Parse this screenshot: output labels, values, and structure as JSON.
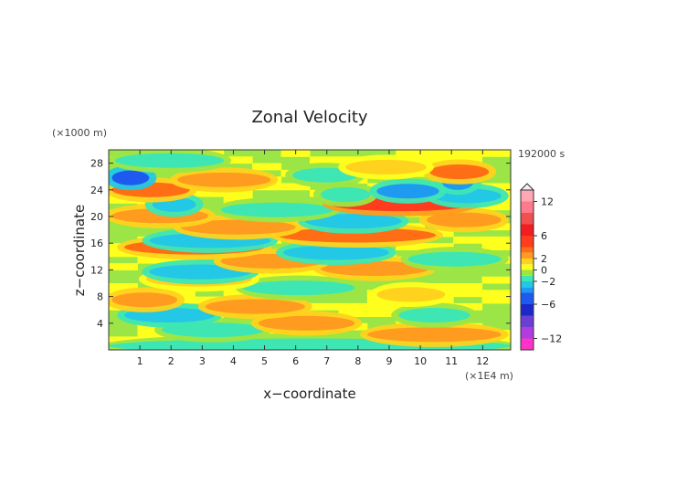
{
  "chart_data": {
    "type": "heatmap",
    "title": "Zonal Velocity",
    "xlabel": "x−coordinate",
    "ylabel": "z−coordinate",
    "x_unit": "(×1E4 m)",
    "y_unit": "(×1000 m)",
    "time_label": "192000 s",
    "xlim": [
      0,
      12.9
    ],
    "ylim": [
      0,
      30
    ],
    "x_ticks": [
      "1",
      "2",
      "3",
      "4",
      "5",
      "6",
      "7",
      "8",
      "9",
      "10",
      "11",
      "12"
    ],
    "x_tick_values": [
      1,
      2,
      3,
      4,
      5,
      6,
      7,
      8,
      9,
      10,
      11,
      12
    ],
    "y_ticks": [
      "4",
      "8",
      "12",
      "16",
      "20",
      "24",
      "28"
    ],
    "y_tick_values": [
      4,
      8,
      12,
      16,
      20,
      24,
      28
    ],
    "colorbar": {
      "labels": [
        "12",
        "6",
        "2",
        "0",
        "−2",
        "−6",
        "−12"
      ],
      "label_values": [
        12,
        6,
        2,
        0,
        -2,
        -6,
        -12
      ],
      "min": -14,
      "max": 14,
      "levels": [
        {
          "lo": -14,
          "hi": -12,
          "color": "#ff33c8"
        },
        {
          "lo": -12,
          "hi": -10,
          "color": "#b13ce0"
        },
        {
          "lo": -10,
          "hi": -8,
          "color": "#6b3fd6"
        },
        {
          "lo": -8,
          "hi": -6,
          "color": "#1c28c8"
        },
        {
          "lo": -6,
          "hi": -4,
          "color": "#1e5af0"
        },
        {
          "lo": -4,
          "hi": -3,
          "color": "#1e9bf0"
        },
        {
          "lo": -3,
          "hi": -2,
          "color": "#22c8e6"
        },
        {
          "lo": -2,
          "hi": -1,
          "color": "#3ee6b4"
        },
        {
          "lo": -1,
          "hi": 0,
          "color": "#9be646"
        },
        {
          "lo": 0,
          "hi": 1,
          "color": "#ffff1e"
        },
        {
          "lo": 1,
          "hi": 2,
          "color": "#ffd21e"
        },
        {
          "lo": 2,
          "hi": 3,
          "color": "#ff9b1e"
        },
        {
          "lo": 3,
          "hi": 4,
          "color": "#ff6e14"
        },
        {
          "lo": 4,
          "hi": 6,
          "color": "#ff3c1e"
        },
        {
          "lo": 6,
          "hi": 8,
          "color": "#f01e1e"
        },
        {
          "lo": 8,
          "hi": 10,
          "color": "#f05050"
        },
        {
          "lo": 10,
          "hi": 12,
          "color": "#ff7a8c"
        },
        {
          "lo": 12,
          "hi": 14,
          "color": "#ffa8b4"
        }
      ]
    },
    "bands": [
      {
        "z": 0.6,
        "x0": 0.0,
        "x1": 12.9,
        "v": -1.4
      },
      {
        "z": 2.3,
        "x0": 8.3,
        "x1": 12.6,
        "v": 2.8
      },
      {
        "z": 3.0,
        "x0": 1.7,
        "x1": 5.0,
        "v": -1.7
      },
      {
        "z": 4.0,
        "x0": 4.8,
        "x1": 7.9,
        "v": 2.4
      },
      {
        "z": 5.2,
        "x0": 0.5,
        "x1": 3.4,
        "v": -2.4
      },
      {
        "z": 5.2,
        "x0": 9.3,
        "x1": 11.6,
        "v": -1.8
      },
      {
        "z": 6.5,
        "x0": 3.1,
        "x1": 6.3,
        "v": 2.1
      },
      {
        "z": 7.5,
        "x0": 0.1,
        "x1": 2.2,
        "v": 2.6
      },
      {
        "z": 8.3,
        "x0": 8.6,
        "x1": 10.8,
        "v": 1.8
      },
      {
        "z": 9.3,
        "x0": 4.3,
        "x1": 7.9,
        "v": -1.6
      },
      {
        "z": 10.6,
        "x0": 1.2,
        "x1": 4.6,
        "v": 1.8
      },
      {
        "z": 11.7,
        "x0": 1.3,
        "x1": 4.6,
        "v": -2.4
      },
      {
        "z": 12.2,
        "x0": 6.8,
        "x1": 10.3,
        "v": 2.6
      },
      {
        "z": 13.3,
        "x0": 3.6,
        "x1": 6.9,
        "v": 2.2
      },
      {
        "z": 13.6,
        "x0": 9.6,
        "x1": 12.6,
        "v": -1.5
      },
      {
        "z": 14.6,
        "x0": 5.6,
        "x1": 9.0,
        "v": -2.3
      },
      {
        "z": 15.4,
        "x0": 0.5,
        "x1": 5.0,
        "v": 3.3
      },
      {
        "z": 16.4,
        "x0": 1.3,
        "x1": 5.2,
        "v": -2.4
      },
      {
        "z": 17.2,
        "x0": 5.4,
        "x1": 10.5,
        "v": 3.0
      },
      {
        "z": 18.4,
        "x0": 2.3,
        "x1": 6.0,
        "v": 2.2
      },
      {
        "z": 19.3,
        "x0": 6.3,
        "x1": 9.4,
        "v": -2.1
      },
      {
        "z": 19.5,
        "x0": 10.2,
        "x1": 12.6,
        "v": 2.4
      },
      {
        "z": 20.1,
        "x0": 0.1,
        "x1": 3.2,
        "v": 2.9
      },
      {
        "z": 21.0,
        "x0": 3.6,
        "x1": 7.2,
        "v": -1.6
      },
      {
        "z": 21.9,
        "x0": 7.1,
        "x1": 11.7,
        "v": 4.0
      },
      {
        "z": 21.8,
        "x0": 1.4,
        "x1": 2.8,
        "v": -2.7
      },
      {
        "z": 23.1,
        "x0": 10.4,
        "x1": 12.6,
        "v": -2.2
      },
      {
        "z": 23.3,
        "x0": 6.8,
        "x1": 8.4,
        "v": -1.6
      },
      {
        "z": 23.8,
        "x0": 8.6,
        "x1": 10.6,
        "v": -3.4
      },
      {
        "z": 24.0,
        "x0": 0.1,
        "x1": 2.6,
        "v": 3.6
      },
      {
        "z": 25.1,
        "x0": 10.7,
        "x1": 11.7,
        "v": -3.8
      },
      {
        "z": 25.5,
        "x0": 2.2,
        "x1": 5.2,
        "v": 2.3
      },
      {
        "z": 25.8,
        "x0": 0.1,
        "x1": 1.3,
        "v": -4.2
      },
      {
        "z": 26.2,
        "x0": 5.9,
        "x1": 8.0,
        "v": -1.9
      },
      {
        "z": 26.7,
        "x0": 10.3,
        "x1": 12.2,
        "v": 3.0
      },
      {
        "z": 27.4,
        "x0": 7.6,
        "x1": 10.2,
        "v": 1.4
      },
      {
        "z": 28.4,
        "x0": 0.2,
        "x1": 3.7,
        "v": -1.3
      }
    ]
  }
}
